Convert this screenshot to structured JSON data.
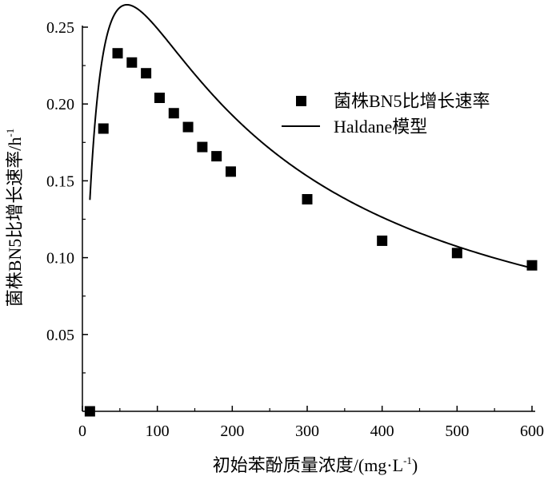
{
  "chart_data": {
    "type": "scatter",
    "title": "",
    "xlabel": "初始苯酚质量浓度/(mg·L",
    "xlabel_sup": "-1",
    "xlabel_tail": ")",
    "ylabel": "菌株BN5比增长速率/h",
    "ylabel_sup": "-1",
    "xlim": [
      0,
      600
    ],
    "ylim": [
      0,
      0.25
    ],
    "xticks": [
      "0",
      "100",
      "200",
      "300",
      "400",
      "500",
      "600"
    ],
    "yticks": [
      "0.05",
      "0.10",
      "0.15",
      "0.20",
      "0.25"
    ],
    "grid": false,
    "legend_position": "top-right",
    "series": [
      {
        "name": "菌株BN5比增长速率",
        "kind": "scatter",
        "marker": "square",
        "color": "#000000",
        "x": [
          10,
          28,
          47,
          66,
          85,
          103,
          122,
          141,
          160,
          179,
          198,
          300,
          400,
          500,
          600
        ],
        "y": [
          0.0,
          0.184,
          0.233,
          0.227,
          0.22,
          0.204,
          0.194,
          0.185,
          0.172,
          0.166,
          0.156,
          0.138,
          0.111,
          0.103,
          0.095
        ]
      },
      {
        "name": "Haldane模型",
        "kind": "line",
        "color": "#000000",
        "model": {
          "mu_max": 0.48,
          "Ks": 24.2,
          "Ki": 146.0
        },
        "x_start": 10,
        "x_end": 600
      }
    ]
  }
}
